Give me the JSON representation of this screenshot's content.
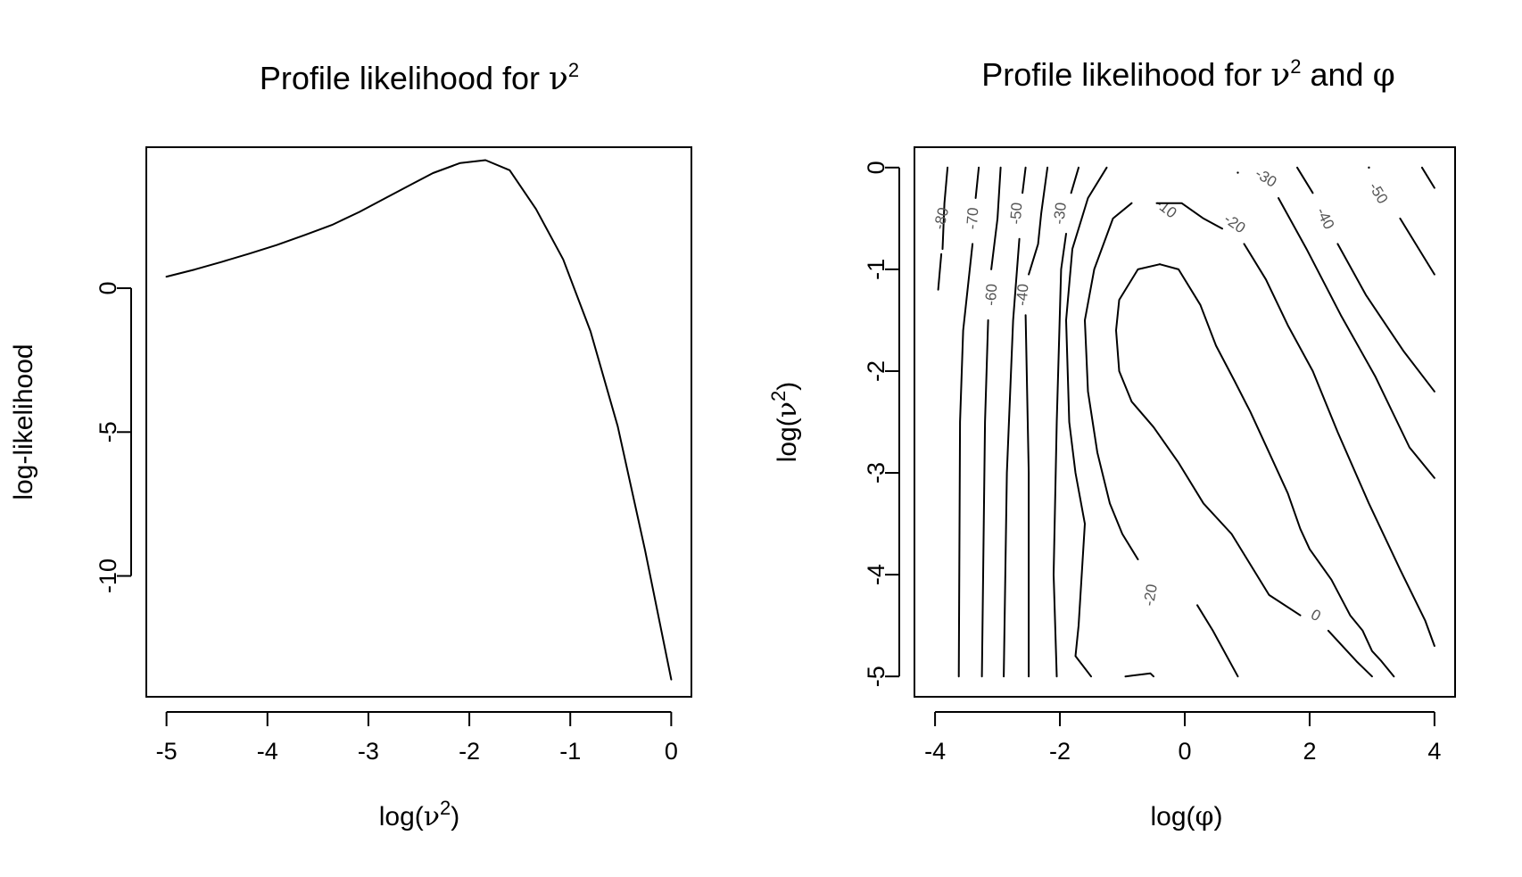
{
  "chart_data": [
    {
      "type": "line",
      "title": "Profile likelihood for ν²",
      "title_parts": {
        "text": "Profile likelihood for ",
        "sym": "ν",
        "sup": "2"
      },
      "xlabel": "log(ν²)",
      "xlabel_parts": {
        "pre": "log(",
        "sym": "ν",
        "sup": "2",
        "post": ")"
      },
      "ylabel": "log-likelihood",
      "xlim": [
        -5.2,
        0.2
      ],
      "ylim": [
        -14.2,
        4.9
      ],
      "xticks": [
        -5,
        -4,
        -3,
        -2,
        -1,
        0
      ],
      "xtick_labels": [
        "-5",
        "-4",
        "-3",
        "-2",
        "-1",
        "0"
      ],
      "yticks": [
        -10,
        -5,
        0
      ],
      "ytick_labels": [
        "-10",
        "-5",
        "0"
      ],
      "grid": false,
      "series": [
        {
          "x": [
            -5.0,
            -4.72,
            -4.45,
            -4.18,
            -3.91,
            -3.63,
            -3.36,
            -3.09,
            -2.82,
            -2.55,
            -2.36,
            -2.09,
            -1.84,
            -1.6,
            -1.34,
            -1.07,
            -0.8,
            -0.53,
            -0.26,
            0.0
          ],
          "y": [
            0.4,
            0.65,
            0.92,
            1.2,
            1.5,
            1.85,
            2.2,
            2.65,
            3.15,
            3.65,
            4.0,
            4.35,
            4.45,
            4.1,
            2.75,
            1.0,
            -1.5,
            -4.8,
            -9.1,
            -13.6
          ]
        }
      ]
    },
    {
      "type": "contour",
      "title": "Profile likelihood for ν² and φ",
      "title_parts": {
        "text": "Profile likelihood for ",
        "sym": "ν",
        "sup": "2",
        "mid": " and ",
        "sym2": "φ"
      },
      "xlabel": "log(φ)",
      "xlabel_parts": {
        "pre": "log(",
        "sym": "φ",
        "post": ")"
      },
      "ylabel": "log(ν²)",
      "ylabel_parts": {
        "pre": "log(",
        "sym": "ν",
        "sup": "2",
        "post": ")"
      },
      "xlim": [
        -4.33,
        4.33
      ],
      "ylim": [
        -5.2,
        0.2
      ],
      "xticks": [
        -4,
        -2,
        0,
        2,
        4
      ],
      "xtick_labels": [
        "-4",
        "-2",
        "0",
        "2",
        "4"
      ],
      "yticks": [
        -5,
        -4,
        -3,
        -2,
        -1,
        0
      ],
      "ytick_labels": [
        "-5",
        "-4",
        "-3",
        "-2",
        "-1",
        "0"
      ],
      "grid": false,
      "contour_levels": [
        "-80",
        "-70",
        "-60",
        "-50",
        "-40",
        "-30",
        "-20",
        "-10",
        "0",
        "-10",
        "-20",
        "-30",
        "-40",
        "-50"
      ],
      "contours": [
        {
          "level": "-80",
          "label_at": [
            -3.9,
            -0.5
          ],
          "points": [
            [
              -3.8,
              0.0
            ],
            [
              -3.85,
              -0.35
            ],
            [
              -3.87,
              -0.65
            ],
            [
              -3.88,
              -0.8
            ]
          ],
          "points2": [
            [
              -3.9,
              -0.85
            ],
            [
              -3.95,
              -1.2
            ]
          ]
        },
        {
          "level": "-70",
          "label_at": [
            -3.4,
            -0.5
          ],
          "points": [
            [
              -3.3,
              0.0
            ],
            [
              -3.35,
              -0.3
            ]
          ],
          "points2": [
            [
              -3.4,
              -0.75
            ],
            [
              -3.55,
              -1.6
            ],
            [
              -3.6,
              -2.5
            ],
            [
              -3.62,
              -5.0
            ]
          ]
        },
        {
          "level": "-60",
          "label_at": [
            -3.1,
            -1.25
          ],
          "points": [
            [
              -2.95,
              0.0
            ],
            [
              -3.0,
              -0.5
            ],
            [
              -3.05,
              -0.75
            ],
            [
              -3.1,
              -1.0
            ]
          ],
          "points2": [
            [
              -3.15,
              -1.5
            ],
            [
              -3.2,
              -2.5
            ],
            [
              -3.25,
              -5.0
            ]
          ]
        },
        {
          "level": "-50",
          "label_at": [
            -2.7,
            -0.45
          ],
          "points": [
            [
              -2.55,
              0.0
            ],
            [
              -2.6,
              -0.25
            ]
          ],
          "points2": [
            [
              -2.65,
              -0.7
            ],
            [
              -2.75,
              -1.5
            ],
            [
              -2.85,
              -3.0
            ],
            [
              -2.9,
              -5.0
            ]
          ]
        },
        {
          "level": "-40",
          "label_at": [
            -2.6,
            -1.25
          ],
          "points": [
            [
              -2.2,
              0.0
            ],
            [
              -2.3,
              -0.45
            ],
            [
              -2.35,
              -0.75
            ],
            [
              -2.5,
              -1.05
            ]
          ],
          "points2": [
            [
              -2.55,
              -1.45
            ],
            [
              -2.5,
              -3.0
            ],
            [
              -2.5,
              -5.0
            ]
          ]
        },
        {
          "level": "-30",
          "label_at": [
            -2.0,
            -0.45
          ],
          "points": [
            [
              -1.7,
              0.0
            ],
            [
              -1.82,
              -0.25
            ]
          ],
          "points2": [
            [
              -1.9,
              -0.65
            ],
            [
              -1.98,
              -1.0
            ],
            [
              -2.05,
              -2.5
            ],
            [
              -2.1,
              -4.0
            ],
            [
              -2.05,
              -5.0
            ]
          ]
        },
        {
          "level": "-20-left",
          "label_at": [
            -0.55,
            -4.2
          ],
          "points": [
            [
              -1.25,
              0.0
            ],
            [
              -1.55,
              -0.3
            ],
            [
              -1.8,
              -0.8
            ],
            [
              -1.9,
              -1.5
            ],
            [
              -1.85,
              -2.5
            ],
            [
              -1.75,
              -3.0
            ],
            [
              -1.6,
              -3.5
            ],
            [
              -1.7,
              -4.5
            ],
            [
              -1.75,
              -4.8
            ],
            [
              -1.5,
              -5.0
            ]
          ]
        },
        {
          "level": "-20-left-b",
          "label_at": null,
          "points": [
            [
              -0.95,
              -5.0
            ],
            [
              -0.55,
              -4.97
            ],
            [
              -0.5,
              -5.0
            ]
          ]
        },
        {
          "level": "-10",
          "label_at": [
            -0.3,
            -0.4
          ],
          "points": [
            [
              -0.85,
              -0.35
            ],
            [
              -1.15,
              -0.5
            ],
            [
              -1.45,
              -1.0
            ],
            [
              -1.6,
              -1.5
            ],
            [
              -1.55,
              -2.2
            ],
            [
              -1.4,
              -2.8
            ],
            [
              -1.2,
              -3.3
            ],
            [
              -1.0,
              -3.6
            ],
            [
              -0.75,
              -3.85
            ]
          ],
          "points2": [
            [
              0.2,
              -4.3
            ],
            [
              0.45,
              -4.55
            ],
            [
              0.85,
              -5.0
            ]
          ]
        },
        {
          "level": "0",
          "label_at": [
            2.1,
            -4.4
          ],
          "points": [
            [
              -0.4,
              -0.95
            ],
            [
              -0.75,
              -1.0
            ],
            [
              -1.05,
              -1.3
            ],
            [
              -1.1,
              -1.6
            ],
            [
              -1.05,
              -2.0
            ],
            [
              -0.85,
              -2.3
            ],
            [
              -0.5,
              -2.55
            ],
            [
              -0.1,
              -2.9
            ],
            [
              0.3,
              -3.3
            ],
            [
              0.75,
              -3.6
            ],
            [
              1.0,
              -3.85
            ],
            [
              1.35,
              -4.2
            ],
            [
              1.85,
              -4.4
            ]
          ],
          "points2": [
            [
              2.3,
              -4.55
            ],
            [
              2.6,
              -4.75
            ],
            [
              2.75,
              -4.85
            ],
            [
              3.0,
              -5.0
            ]
          ]
        },
        {
          "level": "-10-r",
          "label_at": null,
          "points": [
            [
              -0.4,
              -0.95
            ],
            [
              -0.1,
              -1.0
            ],
            [
              0.25,
              -1.35
            ],
            [
              0.5,
              -1.75
            ],
            [
              0.8,
              -2.1
            ],
            [
              1.05,
              -2.4
            ],
            [
              1.35,
              -2.8
            ],
            [
              1.65,
              -3.2
            ],
            [
              1.85,
              -3.55
            ],
            [
              2.0,
              -3.75
            ],
            [
              2.35,
              -4.05
            ],
            [
              2.65,
              -4.4
            ],
            [
              2.85,
              -4.55
            ],
            [
              3.0,
              -4.75
            ],
            [
              3.15,
              -4.85
            ],
            [
              3.35,
              -5.0
            ]
          ]
        },
        {
          "level": "-20-top",
          "label_at": [
            0.8,
            -0.55
          ],
          "points": [
            [
              -0.45,
              -0.35
            ],
            [
              -0.05,
              -0.35
            ],
            [
              0.3,
              -0.5
            ],
            [
              0.6,
              -0.6
            ]
          ],
          "points2": [
            [
              0.95,
              -0.75
            ],
            [
              1.3,
              -1.1
            ],
            [
              1.65,
              -1.55
            ],
            [
              2.05,
              -2.0
            ],
            [
              2.45,
              -2.6
            ],
            [
              2.95,
              -3.3
            ],
            [
              3.45,
              -3.95
            ],
            [
              3.85,
              -4.45
            ],
            [
              4.0,
              -4.7
            ]
          ]
        },
        {
          "level": "-30-top",
          "label_at": [
            1.3,
            -0.1
          ],
          "points": [
            [
              0.85,
              -0.05
            ]
          ],
          "points2": [
            [
              1.5,
              -0.3
            ],
            [
              1.95,
              -0.8
            ],
            [
              2.5,
              -1.45
            ],
            [
              3.05,
              -2.05
            ],
            [
              3.6,
              -2.75
            ],
            [
              4.0,
              -3.05
            ]
          ]
        },
        {
          "level": "-40-top",
          "label_at": [
            2.25,
            -0.5
          ],
          "points": [
            [
              1.8,
              0.0
            ],
            [
              2.05,
              -0.25
            ]
          ],
          "points2": [
            [
              2.45,
              -0.75
            ],
            [
              2.9,
              -1.25
            ],
            [
              3.5,
              -1.8
            ],
            [
              4.0,
              -2.2
            ]
          ]
        },
        {
          "level": "-50-top",
          "label_at": [
            3.1,
            -0.25
          ],
          "points": [
            [
              2.95,
              0.0
            ]
          ],
          "points2": [
            [
              3.45,
              -0.5
            ],
            [
              3.75,
              -0.8
            ],
            [
              4.0,
              -1.05
            ]
          ]
        },
        {
          "level": "-60-top",
          "label_at": null,
          "points": [
            [
              3.8,
              0.0
            ],
            [
              4.0,
              -0.2
            ]
          ]
        }
      ]
    }
  ]
}
